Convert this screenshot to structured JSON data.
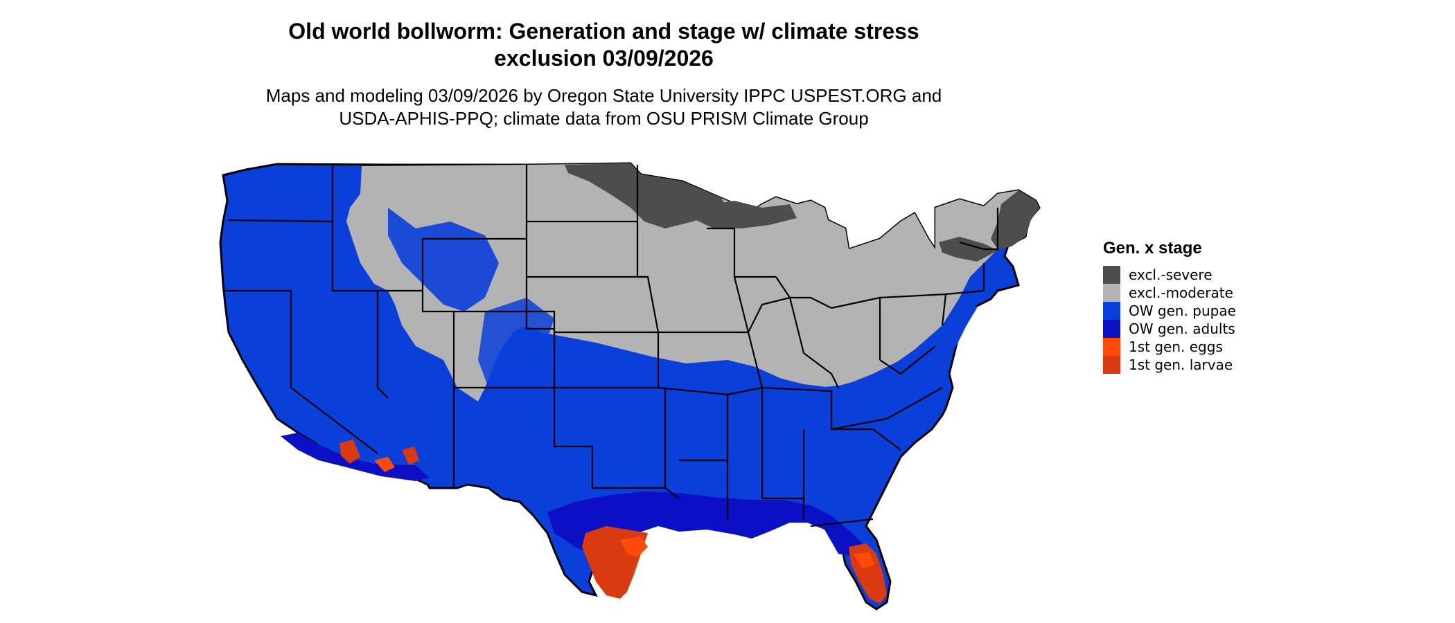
{
  "title": {
    "line1": "Old world bollworm: Generation and stage w/ climate stress",
    "line2": "exclusion 03/09/2026"
  },
  "subtitle": {
    "line1": "Maps and modeling 03/09/2026 by Oregon State University IPPC USPEST.ORG and",
    "line2": "USDA-APHIS-PPQ; climate data from OSU PRISM Climate Group"
  },
  "legend": {
    "title": "Gen. x stage",
    "items": [
      {
        "label": "excl.-severe",
        "color": "#4d4d4d"
      },
      {
        "label": "excl.-moderate",
        "color": "#b3b3b3"
      },
      {
        "label": "OW gen. pupae",
        "color": "#0a3fd9"
      },
      {
        "label": "OW gen. adults",
        "color": "#0b10c4"
      },
      {
        "label": "1st gen. eggs",
        "color": "#ff4a0a"
      },
      {
        "label": "1st gen. larvae",
        "color": "#d93a0f"
      }
    ]
  },
  "colors": {
    "boundary": "#000000",
    "background": "#ffffff"
  }
}
